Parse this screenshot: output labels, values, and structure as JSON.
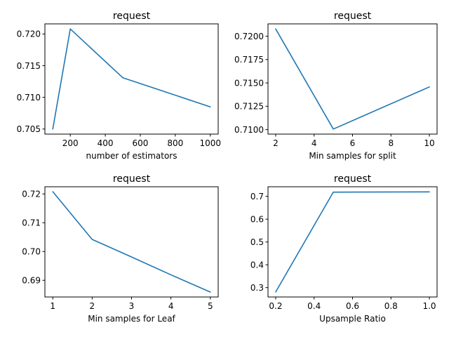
{
  "chart_data": [
    {
      "type": "line",
      "title": "request",
      "xlabel": "number of estimators",
      "ylabel": "",
      "x": [
        100,
        200,
        500,
        1000
      ],
      "series": [
        {
          "values": [
            0.705,
            0.7208,
            0.7131,
            0.7085
          ]
        }
      ],
      "xlim": [
        55,
        1045
      ],
      "ylim": [
        0.7042,
        0.7216
      ],
      "xticks": [
        200,
        400,
        600,
        800,
        1000
      ],
      "xtick_labels": [
        "200",
        "400",
        "600",
        "800",
        "1000"
      ],
      "yticks": [
        0.705,
        0.71,
        0.715,
        0.72
      ],
      "ytick_labels": [
        "0.705",
        "0.710",
        "0.715",
        "0.720"
      ],
      "grid": false,
      "color": "#1f77b4"
    },
    {
      "type": "line",
      "title": "request",
      "xlabel": "Min samples for split",
      "ylabel": "",
      "x": [
        2,
        5,
        10
      ],
      "series": [
        {
          "values": [
            0.72078,
            0.71006,
            0.71457
          ]
        }
      ],
      "xlim": [
        1.6,
        10.4
      ],
      "ylim": [
        0.70952,
        0.72132
      ],
      "xticks": [
        2,
        4,
        6,
        8,
        10
      ],
      "xtick_labels": [
        "2",
        "4",
        "6",
        "8",
        "10"
      ],
      "yticks": [
        0.71,
        0.7125,
        0.715,
        0.7175,
        0.72
      ],
      "ytick_labels": [
        "0.7100",
        "0.7125",
        "0.7150",
        "0.7175",
        "0.7200"
      ],
      "grid": false,
      "color": "#1f77b4"
    },
    {
      "type": "line",
      "title": "request",
      "xlabel": "Min samples for Leaf",
      "ylabel": "",
      "x": [
        1,
        2,
        3,
        4,
        5
      ],
      "series": [
        {
          "values": [
            0.7208,
            0.7042,
            0.6981,
            0.6919,
            0.6859
          ]
        }
      ],
      "xlim": [
        0.8,
        5.2
      ],
      "ylim": [
        0.6842,
        0.7225
      ],
      "xticks": [
        1,
        2,
        3,
        4,
        5
      ],
      "xtick_labels": [
        "1",
        "2",
        "3",
        "4",
        "5"
      ],
      "yticks": [
        0.69,
        0.7,
        0.71,
        0.72
      ],
      "ytick_labels": [
        "0.69",
        "0.70",
        "0.71",
        "0.72"
      ],
      "grid": false,
      "color": "#1f77b4"
    },
    {
      "type": "line",
      "title": "request",
      "xlabel": "Upsample Ratio",
      "ylabel": "",
      "x": [
        0.2,
        0.5,
        1.0
      ],
      "series": [
        {
          "values": [
            0.281,
            0.7185,
            0.7195
          ]
        }
      ],
      "xlim": [
        0.16,
        1.04
      ],
      "ylim": [
        0.259,
        0.742
      ],
      "xticks": [
        0.2,
        0.4,
        0.6,
        0.8,
        1.0
      ],
      "xtick_labels": [
        "0.2",
        "0.4",
        "0.6",
        "0.8",
        "1.0"
      ],
      "yticks": [
        0.3,
        0.4,
        0.5,
        0.6,
        0.7
      ],
      "ytick_labels": [
        "0.3",
        "0.4",
        "0.5",
        "0.6",
        "0.7"
      ],
      "grid": false,
      "color": "#1f77b4"
    }
  ]
}
